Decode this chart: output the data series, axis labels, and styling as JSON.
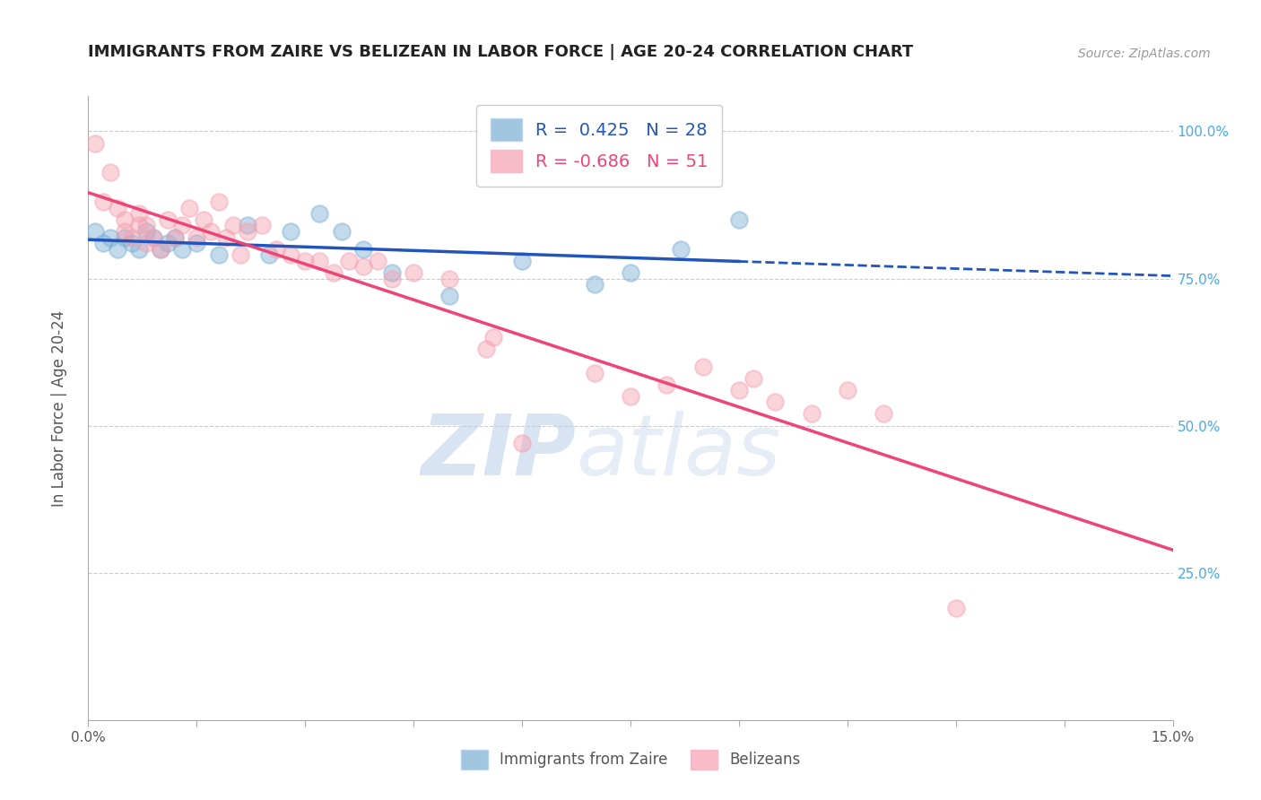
{
  "title": "IMMIGRANTS FROM ZAIRE VS BELIZEAN IN LABOR FORCE | AGE 20-24 CORRELATION CHART",
  "source": "Source: ZipAtlas.com",
  "ylabel": "In Labor Force | Age 20-24",
  "legend_labels": [
    "Immigrants from Zaire",
    "Belizeans"
  ],
  "r_zaire": 0.425,
  "n_zaire": 28,
  "r_belize": -0.686,
  "n_belize": 51,
  "blue_color": "#7BAFD4",
  "pink_color": "#F4A0B0",
  "blue_line_color": "#2255BB",
  "pink_line_color": "#EE4477",
  "watermark_zip": "ZIP",
  "watermark_atlas": "atlas",
  "xlim": [
    0.0,
    0.15
  ],
  "ylim": [
    0.0,
    1.06
  ],
  "zaire_x": [
    0.001,
    0.002,
    0.003,
    0.004,
    0.005,
    0.006,
    0.007,
    0.008,
    0.009,
    0.01,
    0.011,
    0.012,
    0.013,
    0.015,
    0.018,
    0.022,
    0.025,
    0.028,
    0.032,
    0.035,
    0.038,
    0.042,
    0.05,
    0.06,
    0.07,
    0.075,
    0.082,
    0.09
  ],
  "zaire_y": [
    0.83,
    0.81,
    0.82,
    0.8,
    0.82,
    0.81,
    0.8,
    0.83,
    0.82,
    0.8,
    0.81,
    0.82,
    0.8,
    0.81,
    0.79,
    0.84,
    0.79,
    0.83,
    0.86,
    0.83,
    0.8,
    0.76,
    0.72,
    0.78,
    0.74,
    0.76,
    0.8,
    0.85
  ],
  "belize_x": [
    0.001,
    0.002,
    0.003,
    0.004,
    0.005,
    0.005,
    0.006,
    0.007,
    0.007,
    0.008,
    0.008,
    0.009,
    0.01,
    0.011,
    0.012,
    0.013,
    0.014,
    0.015,
    0.016,
    0.017,
    0.018,
    0.019,
    0.02,
    0.021,
    0.022,
    0.024,
    0.026,
    0.028,
    0.03,
    0.032,
    0.034,
    0.036,
    0.038,
    0.04,
    0.042,
    0.045,
    0.05,
    0.055,
    0.056,
    0.06,
    0.07,
    0.075,
    0.08,
    0.085,
    0.09,
    0.092,
    0.095,
    0.1,
    0.105,
    0.11,
    0.12
  ],
  "belize_y": [
    0.98,
    0.88,
    0.93,
    0.87,
    0.83,
    0.85,
    0.82,
    0.84,
    0.86,
    0.81,
    0.84,
    0.82,
    0.8,
    0.85,
    0.82,
    0.84,
    0.87,
    0.82,
    0.85,
    0.83,
    0.88,
    0.82,
    0.84,
    0.79,
    0.83,
    0.84,
    0.8,
    0.79,
    0.78,
    0.78,
    0.76,
    0.78,
    0.77,
    0.78,
    0.75,
    0.76,
    0.75,
    0.63,
    0.65,
    0.47,
    0.59,
    0.55,
    0.57,
    0.6,
    0.56,
    0.58,
    0.54,
    0.52,
    0.56,
    0.52,
    0.19
  ]
}
